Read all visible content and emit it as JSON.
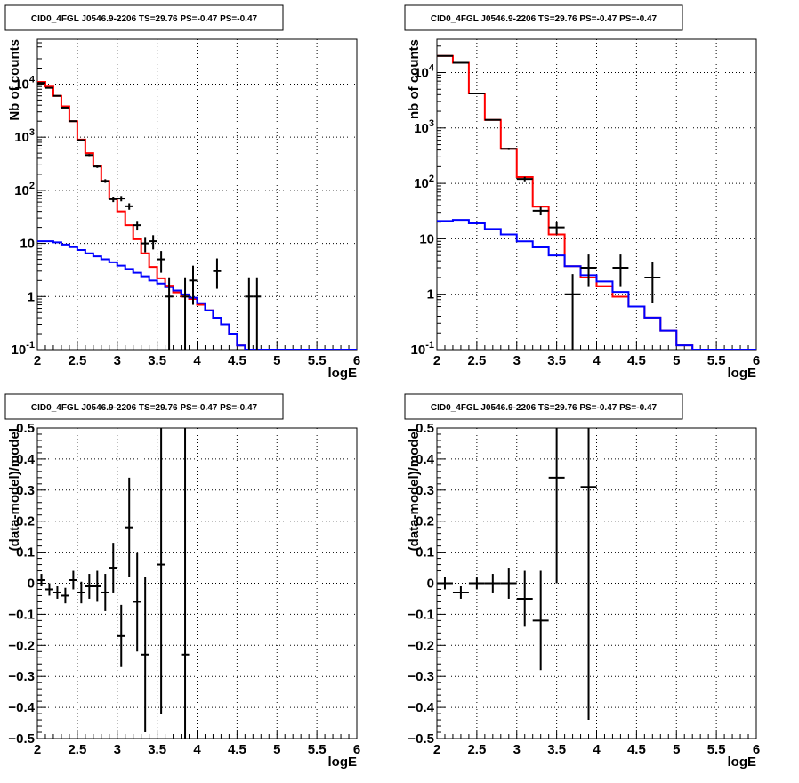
{
  "chart_data": [
    {
      "type": "line",
      "title": "CID0_4FGL J0546.9-2206 TS=29.76 PS=-0.47 PS=-0.47",
      "xlabel": "logE",
      "ylabel": "Nb of counts",
      "xlim": [
        2,
        6
      ],
      "ylim": [
        0.1,
        70000
      ],
      "yscale": "log",
      "grid": true,
      "bin_width": 0.1,
      "x_edges": [
        2.0,
        2.1,
        2.2,
        2.3,
        2.4,
        2.5,
        2.6,
        2.7,
        2.8,
        2.9,
        3.0,
        3.1,
        3.2,
        3.3,
        3.4,
        3.5,
        3.6,
        3.7,
        3.8,
        3.9,
        4.0,
        4.1,
        4.2,
        4.3,
        4.4,
        4.5,
        4.6,
        4.7,
        4.8,
        4.9,
        5.0,
        5.1,
        5.2,
        5.3,
        5.4,
        5.5,
        5.6,
        5.7,
        5.8,
        5.9,
        6.0
      ],
      "series": [
        {
          "color": "#ff0000",
          "style": "step",
          "values": [
            11000,
            9000,
            6000,
            3800,
            2000,
            900,
            500,
            290,
            150,
            70,
            40,
            22,
            12,
            6.5,
            3.6,
            2.2,
            1.6,
            1.2,
            1.0,
            0.9,
            0.7,
            0.55,
            0.4,
            0.3,
            0.2,
            0.12,
            0.07,
            0,
            0,
            0,
            0,
            0,
            0,
            0,
            0,
            0,
            0,
            0,
            0,
            0
          ]
        },
        {
          "color": "#0000ff",
          "style": "step",
          "values": [
            11,
            11,
            10.5,
            9.5,
            8.5,
            7.5,
            6.5,
            5.7,
            5.0,
            4.4,
            3.8,
            3.3,
            2.8,
            2.4,
            2.0,
            1.75,
            1.5,
            1.3,
            1.1,
            0.95,
            0.75,
            0.55,
            0.4,
            0.3,
            0.2,
            0.12,
            0.07,
            0.1,
            0.1,
            0.1,
            0.1,
            0.1,
            0.1,
            0.1,
            0.1,
            0.1,
            0.1,
            0.1,
            0.1,
            0.1
          ]
        },
        {
          "color": "#000000",
          "style": "points",
          "x": [
            2.05,
            2.15,
            2.25,
            2.35,
            2.45,
            2.55,
            2.65,
            2.75,
            2.85,
            2.95,
            3.05,
            3.15,
            3.25,
            3.35,
            3.45,
            3.55,
            3.65,
            3.85,
            3.95,
            4.25,
            4.65,
            4.75
          ],
          "y": [
            10500,
            8500,
            6000,
            3600,
            2000,
            880,
            460,
            280,
            150,
            68,
            70,
            50,
            22,
            10,
            11,
            5,
            1,
            1,
            2,
            3,
            1,
            1
          ],
          "yerr_lo": [
            100,
            90,
            75,
            60,
            45,
            30,
            21,
            17,
            12,
            8,
            8,
            7,
            4.5,
            3.2,
            3.3,
            2.2,
            0.9,
            0.9,
            1.3,
            1.6,
            0.9,
            0.9
          ],
          "yerr_hi": [
            100,
            90,
            75,
            60,
            45,
            30,
            21,
            17,
            12,
            8,
            8,
            7,
            4.5,
            3.2,
            3.3,
            2.2,
            1.3,
            1.3,
            1.8,
            2.2,
            1.3,
            1.3
          ]
        }
      ]
    },
    {
      "type": "line",
      "title": "CID0_4FGL J0546.9-2206 TS=29.76 PS=-0.47 PS=-0.47",
      "xlabel": "logE",
      "ylabel": "nb of counts",
      "xlim": [
        2,
        6
      ],
      "ylim": [
        0.1,
        40000
      ],
      "yscale": "log",
      "grid": true,
      "bin_width": 0.2,
      "x_edges": [
        2.0,
        2.2,
        2.4,
        2.6,
        2.8,
        3.0,
        3.2,
        3.4,
        3.6,
        3.8,
        4.0,
        4.2,
        4.4,
        4.6,
        4.8,
        5.0,
        5.2,
        5.4,
        5.6,
        5.8,
        6.0
      ],
      "series": [
        {
          "color": "#ff0000",
          "style": "step",
          "values": [
            20000,
            15000,
            4200,
            1400,
            420,
            130,
            38,
            12,
            3.2,
            2.0,
            1.4,
            0.9,
            0.6,
            0.38,
            0.22,
            0.12,
            0.1,
            0.1,
            0.1,
            0.1
          ]
        },
        {
          "color": "#0000ff",
          "style": "step",
          "values": [
            21,
            22,
            19,
            15,
            12,
            9.0,
            7.0,
            5.0,
            3.2,
            2.2,
            1.7,
            1.1,
            0.6,
            0.38,
            0.22,
            0.12,
            0.1,
            0.1,
            0.1,
            0.1
          ]
        },
        {
          "color": "#000000",
          "style": "points",
          "x": [
            2.1,
            2.3,
            2.5,
            2.7,
            2.9,
            3.1,
            3.3,
            3.5,
            3.7,
            3.9,
            4.3,
            4.7
          ],
          "y": [
            20000,
            15000,
            4200,
            1400,
            420,
            120,
            32,
            16,
            1,
            3,
            3,
            2
          ],
          "yerr_lo": [
            140,
            120,
            65,
            37,
            20,
            11,
            5.5,
            4,
            0.9,
            1.6,
            1.6,
            1.3
          ],
          "yerr_hi": [
            140,
            120,
            65,
            37,
            20,
            11,
            5.5,
            4,
            1.3,
            2.2,
            2.2,
            1.8
          ]
        }
      ]
    },
    {
      "type": "scatter",
      "title": "CID0_4FGL J0546.9-2206 TS=29.76 PS=-0.47 PS=-0.47",
      "xlabel": "logE",
      "ylabel": "(data-model)/model",
      "xlim": [
        2,
        6
      ],
      "ylim": [
        -0.5,
        0.5
      ],
      "grid": true,
      "bin_width": 0.1,
      "points": {
        "x": [
          2.05,
          2.15,
          2.25,
          2.35,
          2.45,
          2.55,
          2.65,
          2.75,
          2.85,
          2.95,
          3.05,
          3.15,
          3.25,
          3.35,
          3.55,
          3.85
        ],
        "y": [
          0.01,
          -0.02,
          -0.03,
          -0.04,
          0.01,
          -0.03,
          -0.01,
          -0.01,
          -0.03,
          0.05,
          -0.17,
          0.18,
          -0.06,
          -0.23,
          0.06,
          -0.23
        ],
        "yerr": [
          0.02,
          0.02,
          0.02,
          0.025,
          0.03,
          0.035,
          0.04,
          0.05,
          0.06,
          0.08,
          0.1,
          0.16,
          0.16,
          0.25,
          0.48,
          0.76
        ]
      }
    },
    {
      "type": "scatter",
      "title": "CID0_4FGL J0546.9-2206 TS=29.76 PS=-0.47 PS=-0.47",
      "xlabel": "logE",
      "ylabel": "(data-model)/model",
      "xlim": [
        2,
        6
      ],
      "ylim": [
        -0.5,
        0.5
      ],
      "grid": true,
      "bin_width": 0.2,
      "points": {
        "x": [
          2.1,
          2.3,
          2.5,
          2.7,
          2.9,
          3.1,
          3.3,
          3.5,
          3.9
        ],
        "y": [
          0.0,
          -0.03,
          0.0,
          0.0,
          0.0,
          -0.05,
          -0.12,
          0.34,
          0.31
        ],
        "yerr": [
          0.02,
          0.02,
          0.02,
          0.03,
          0.05,
          0.09,
          0.16,
          0.34,
          0.75
        ]
      }
    }
  ]
}
